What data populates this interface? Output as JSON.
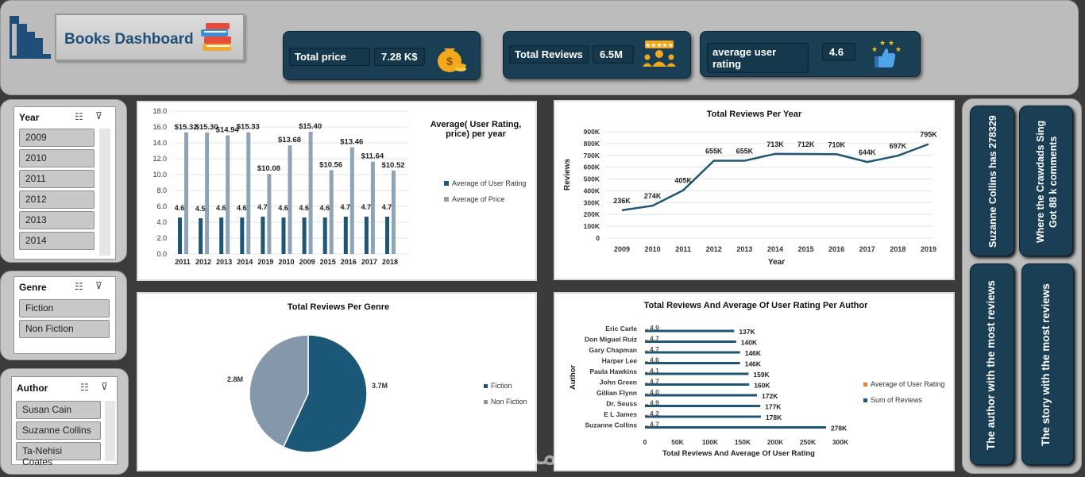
{
  "header": {
    "title": "Books Dashboard"
  },
  "kpis": [
    {
      "label": "Total price",
      "value": "7.28 K$"
    },
    {
      "label": "Total Reviews",
      "value": "6.5M"
    },
    {
      "label": "average user rating",
      "value": "4.6"
    }
  ],
  "slicers": {
    "year": {
      "title": "Year",
      "items": [
        "2009",
        "2010",
        "2011",
        "2012",
        "2013",
        "2014"
      ]
    },
    "genre": {
      "title": "Genre",
      "items": [
        "Fiction",
        "Non Fiction"
      ]
    },
    "author": {
      "title": "Author",
      "items": [
        "Susan Cain",
        "Suzanne Collins",
        "Ta-Nehisi Coates"
      ]
    }
  },
  "side_cards": [
    "Suzanne Collins has 278329",
    "Where the Crawdads Sing Got 88 k comments",
    "The author with the most reviews",
    "The story with the most reviews"
  ],
  "watermark": "خمسات",
  "colors": {
    "navy": "#1a3f55",
    "bar_dark": "#1f5673",
    "bar_light": "#8ea3b7",
    "orange": "#ed7d31",
    "pie_dark": "#1b5878",
    "pie_light": "#8497ab"
  },
  "chart_data": [
    {
      "id": "rating_price_per_year",
      "type": "bar",
      "title": "Average( User Rating, price) per year",
      "title_lines": [
        "Average( User Rating,",
        "price) per year"
      ],
      "categories": [
        "2011",
        "2012",
        "2013",
        "2014",
        "2019",
        "2010",
        "2009",
        "2015",
        "2016",
        "2017",
        "2018"
      ],
      "series": [
        {
          "name": "Average of User Rating",
          "values": [
            4.6,
            4.5,
            4.6,
            4.6,
            4.7,
            4.6,
            4.6,
            4.6,
            4.7,
            4.7,
            4.7
          ],
          "labels": [
            "4.6",
            "4.5",
            "4.6",
            "4.6",
            "4.7",
            "4.6",
            "4.6",
            "4.6",
            "4.7",
            "4.7",
            "4.7"
          ]
        },
        {
          "name": "Average of Price",
          "values": [
            15.32,
            15.3,
            14.94,
            15.33,
            10.08,
            13.68,
            15.4,
            10.56,
            13.46,
            11.64,
            10.52
          ],
          "labels": [
            "$15.32",
            "$15.30",
            "$14.94",
            "$15.33",
            "$10.08",
            "$13.68",
            "$15.40",
            "$10.56",
            "$13.46",
            "$11.64",
            "$10.52"
          ]
        }
      ],
      "yticks": [
        "0.0",
        "2.0",
        "4.0",
        "6.0",
        "8.0",
        "10.0",
        "12.0",
        "14.0",
        "16.0",
        "18.0"
      ],
      "ylim": [
        0,
        18
      ]
    },
    {
      "id": "reviews_per_year",
      "type": "line",
      "title": "Total Reviews Per Year",
      "xlabel": "Year",
      "ylabel": "Reviews",
      "x": [
        "2009",
        "2010",
        "2011",
        "2012",
        "2013",
        "2014",
        "2015",
        "2016",
        "2017",
        "2018",
        "2019"
      ],
      "values": [
        236,
        274,
        405,
        655,
        655,
        713,
        712,
        710,
        644,
        697,
        795
      ],
      "labels": [
        "236K",
        "274K",
        "405K",
        "655K",
        "655K",
        "713K",
        "712K",
        "710K",
        "644K",
        "697K",
        "795K"
      ],
      "yticks": [
        "0",
        "100K",
        "200K",
        "300K",
        "400K",
        "500K",
        "600K",
        "700K",
        "800K",
        "900K"
      ],
      "ylim": [
        0,
        900
      ]
    },
    {
      "id": "reviews_per_genre",
      "type": "pie",
      "title": "Total Reviews Per Genre",
      "slices": [
        {
          "name": "Fiction",
          "value": 3.7,
          "label": "3.7M"
        },
        {
          "name": "Non Fiction",
          "value": 2.8,
          "label": "2.8M"
        }
      ]
    },
    {
      "id": "reviews_per_author",
      "type": "bar",
      "orientation": "horizontal",
      "title": "Total Reviews And Average Of User Rating Per Author",
      "xlabel": "Total Reviews And Average Of User Rating",
      "ylabel": "Author",
      "categories": [
        "Eric Carle",
        "Don Miguel Ruiz",
        "Gary Chapman",
        "Harper Lee",
        "Paula Hawkins",
        "John Green",
        "Gillian Flynn",
        "Dr. Seuss",
        "E L James",
        "Suzanne Collins"
      ],
      "series": [
        {
          "name": "Average of User Rating",
          "values": [
            4.9,
            4.7,
            4.7,
            4.6,
            4.1,
            4.7,
            4.0,
            4.9,
            4.2,
            4.7
          ],
          "labels": [
            "4.9",
            "4.7",
            "4.7",
            "4.6",
            "4.1",
            "4.7",
            "4.0",
            "4.9",
            "4.2",
            "4.7"
          ]
        },
        {
          "name": "Sum of Reviews",
          "values": [
            137,
            140,
            146,
            146,
            159,
            160,
            172,
            177,
            178,
            278
          ],
          "labels": [
            "137K",
            "140K",
            "146K",
            "146K",
            "159K",
            "160K",
            "172K",
            "177K",
            "178K",
            "278K"
          ]
        }
      ],
      "xticks": [
        "0",
        "50K",
        "100K",
        "150K",
        "200K",
        "250K",
        "300K"
      ],
      "xlim": [
        0,
        300
      ]
    }
  ]
}
